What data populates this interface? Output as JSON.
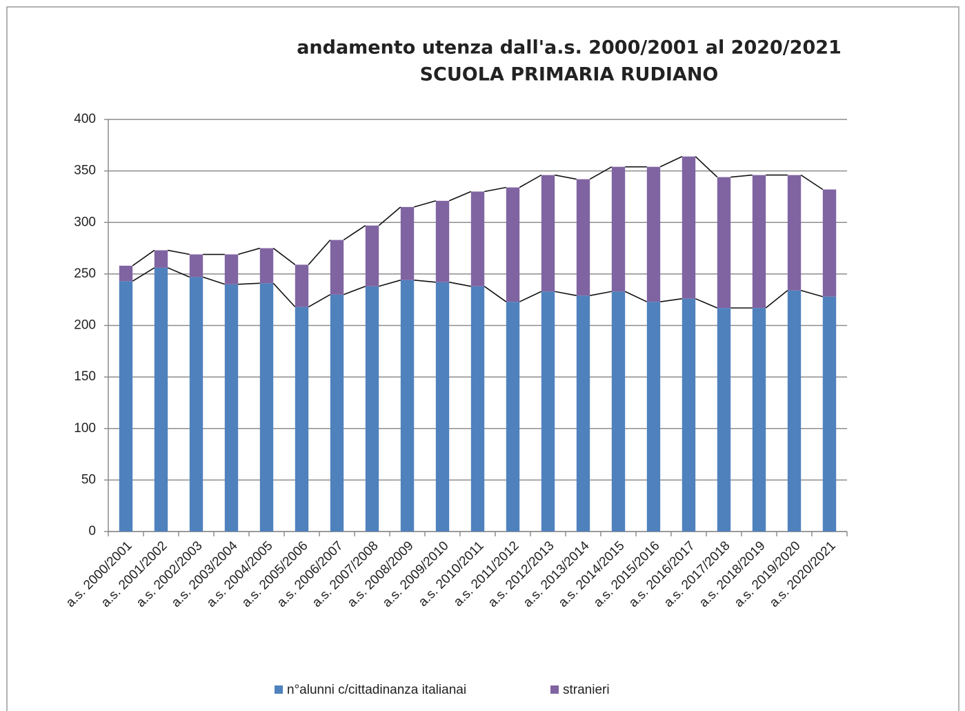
{
  "chart_data": {
    "type": "stacked_bar",
    "title": "andamento utenza dall'a.s. 2000/2001 al 2020/2021",
    "subtitle": "SCUOLA PRIMARIA  RUDIANO",
    "categories": [
      "a.s. 2000/2001",
      "a.s. 2001/2002",
      "a.s. 2002/2003",
      "a.s. 2003/2004",
      "a.s. 2004/2005",
      "a.s. 2005/2006",
      "a.s. 2006/2007",
      "a.s. 2007/2008",
      "a.s. 2008/2009",
      "a.s. 2009/2010",
      "a.s. 2010/2011",
      "a.s. 2011/2012",
      "a.s. 2012/2013",
      "a.s. 2013/2014",
      "a.s. 2014/2015",
      "a.s. 2015/2016",
      "a.s. 2016/2017",
      "a.s. 2017/2018",
      "a.s. 2018/2019",
      "a.s. 2019/2020",
      "a.s. 2020/2021"
    ],
    "series": [
      {
        "name": "n°alunni c/cittadinanza italianai",
        "color": "#4f81bd",
        "values": [
          243,
          256,
          247,
          240,
          241,
          218,
          230,
          238,
          244,
          242,
          238,
          223,
          233,
          229,
          233,
          223,
          226,
          217,
          217,
          234,
          228
        ]
      },
      {
        "name": "stranieri",
        "color": "#8064a2",
        "values": [
          15,
          17,
          22,
          29,
          34,
          41,
          53,
          59,
          71,
          79,
          92,
          111,
          113,
          113,
          121,
          131,
          138,
          127,
          129,
          112,
          104
        ]
      }
    ],
    "ylim": [
      0,
      400
    ],
    "yticks": [
      0,
      50,
      100,
      150,
      200,
      250,
      300,
      350,
      400
    ],
    "grid": true,
    "series_lines": true,
    "legend": "bottom"
  }
}
